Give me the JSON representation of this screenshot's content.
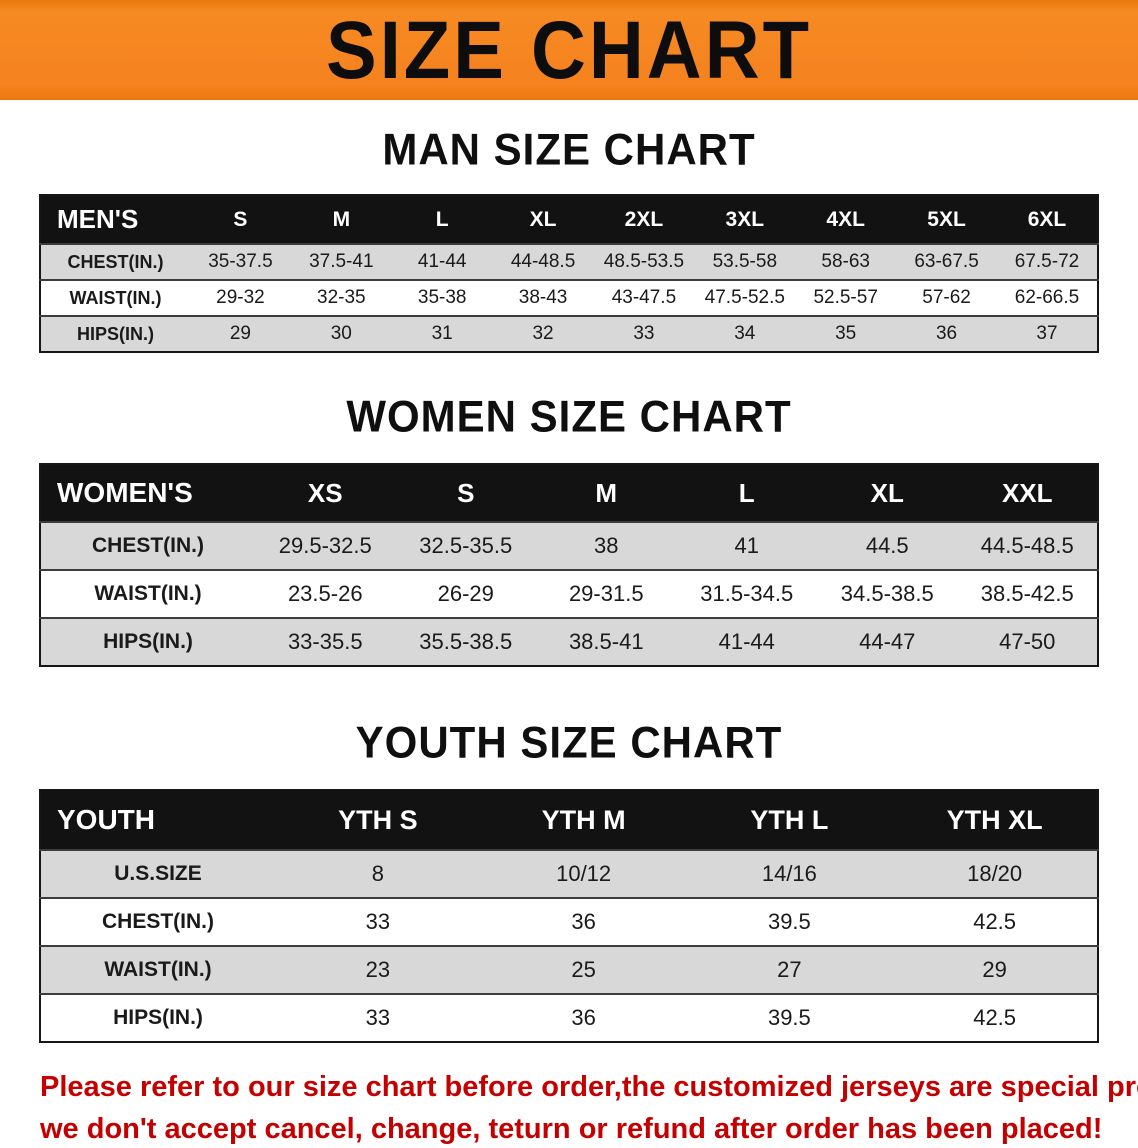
{
  "banner": {
    "title": "SIZE CHART"
  },
  "colors": {
    "banner_orange": "#f5821f",
    "header_black": "#121212",
    "row_gray": "#d8d8d8",
    "disclaimer_red": "#c40000"
  },
  "sections": {
    "men": {
      "heading": "MAN SIZE CHART",
      "table": {
        "header": [
          "MEN'S",
          "S",
          "M",
          "L",
          "XL",
          "2XL",
          "3XL",
          "4XL",
          "5XL",
          "6XL"
        ],
        "rows": [
          [
            "CHEST(IN.)",
            "35-37.5",
            "37.5-41",
            "41-44",
            "44-48.5",
            "48.5-53.5",
            "53.5-58",
            "58-63",
            "63-67.5",
            "67.5-72"
          ],
          [
            "WAIST(IN.)",
            "29-32",
            "32-35",
            "35-38",
            "38-43",
            "43-47.5",
            "47.5-52.5",
            "52.5-57",
            "57-62",
            "62-66.5"
          ],
          [
            "HIPS(IN.)",
            "29",
            "30",
            "31",
            "32",
            "33",
            "34",
            "35",
            "36",
            "37"
          ]
        ]
      }
    },
    "women": {
      "heading": "WOMEN SIZE CHART",
      "table": {
        "header": [
          "WOMEN'S",
          "XS",
          "S",
          "M",
          "L",
          "XL",
          "XXL"
        ],
        "rows": [
          [
            "CHEST(IN.)",
            "29.5-32.5",
            "32.5-35.5",
            "38",
            "41",
            "44.5",
            "44.5-48.5"
          ],
          [
            "WAIST(IN.)",
            "23.5-26",
            "26-29",
            "29-31.5",
            "31.5-34.5",
            "34.5-38.5",
            "38.5-42.5"
          ],
          [
            "HIPS(IN.)",
            "33-35.5",
            "35.5-38.5",
            "38.5-41",
            "41-44",
            "44-47",
            "47-50"
          ]
        ]
      }
    },
    "youth": {
      "heading": "YOUTH SIZE CHART",
      "table": {
        "header": [
          "YOUTH",
          "YTH S",
          "YTH M",
          "YTH L",
          "YTH XL"
        ],
        "rows": [
          [
            "U.S.SIZE",
            "8",
            "10/12",
            "14/16",
            "18/20"
          ],
          [
            "CHEST(IN.)",
            "33",
            "36",
            "39.5",
            "42.5"
          ],
          [
            "WAIST(IN.)",
            "23",
            "25",
            "27",
            "29"
          ],
          [
            "HIPS(IN.)",
            "33",
            "36",
            "39.5",
            "42.5"
          ]
        ]
      }
    }
  },
  "disclaimer": {
    "line1": "Please refer to our size chart before order,the customized jerseys are special products,",
    "line2": "we don't accept cancel, change, teturn or refund after order has been placed!"
  }
}
